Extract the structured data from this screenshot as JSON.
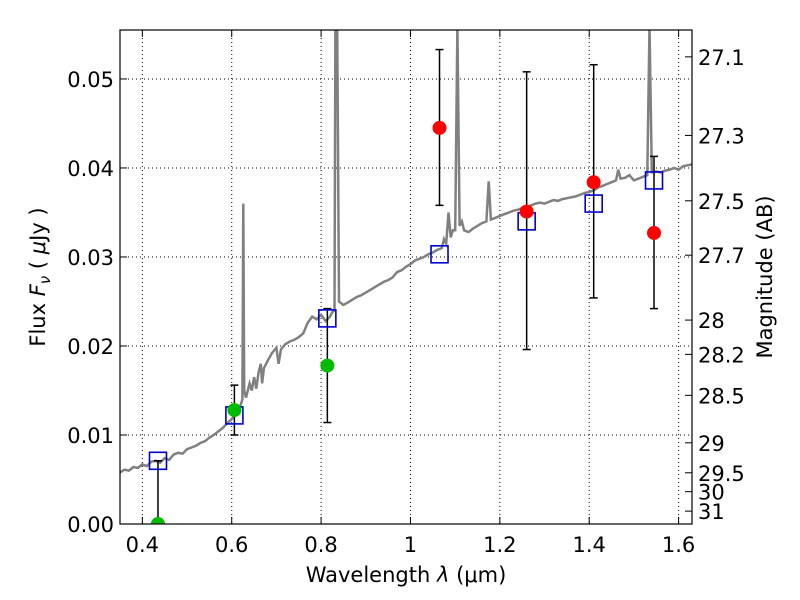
{
  "chart_data": {
    "type": "scatter",
    "title": "",
    "xlabel_main": "Wavelength",
    "xlabel_symbol": "λ",
    "xlabel_unit": "(μm)",
    "ylabel_main": "Flux",
    "ylabel_symbol": "F",
    "ylabel_subscript": "ν",
    "ylabel_unit_open": "(",
    "ylabel_unit_mu": "μ",
    "ylabel_unit_rest": "Jy",
    "ylabel_unit_close": ")",
    "y2label": "Magnitude (AB)",
    "xlim": [
      0.35,
      1.63
    ],
    "ylim": [
      0.0,
      0.0555
    ],
    "grid": true,
    "x_ticks": [
      {
        "value": 0.4,
        "label": "0.4"
      },
      {
        "value": 0.6,
        "label": "0.6"
      },
      {
        "value": 0.8,
        "label": "0.8"
      },
      {
        "value": 1.0,
        "label": "1"
      },
      {
        "value": 1.2,
        "label": "1.2"
      },
      {
        "value": 1.4,
        "label": "1.4"
      },
      {
        "value": 1.6,
        "label": "1.6"
      }
    ],
    "y_ticks": [
      {
        "value": 0.0,
        "label": "0.00"
      },
      {
        "value": 0.01,
        "label": "0.01"
      },
      {
        "value": 0.02,
        "label": "0.02"
      },
      {
        "value": 0.03,
        "label": "0.03"
      },
      {
        "value": 0.04,
        "label": "0.04"
      },
      {
        "value": 0.05,
        "label": "0.05"
      }
    ],
    "y2_ticks": [
      {
        "value": 27.1,
        "label": "27.1"
      },
      {
        "value": 27.3,
        "label": "27.3"
      },
      {
        "value": 27.5,
        "label": "27.5"
      },
      {
        "value": 27.7,
        "label": "27.7"
      },
      {
        "value": 28.0,
        "label": "28"
      },
      {
        "value": 28.2,
        "label": "28.2"
      },
      {
        "value": 28.5,
        "label": "28.5"
      },
      {
        "value": 29.0,
        "label": "29"
      },
      {
        "value": 29.5,
        "label": "29.5"
      },
      {
        "value": 30.0,
        "label": "30"
      },
      {
        "value": 31.0,
        "label": "31"
      }
    ],
    "model_spectrum": {
      "color": "#808080",
      "points": [
        [
          0.35,
          0.0058
        ],
        [
          0.36,
          0.0061
        ],
        [
          0.37,
          0.006
        ],
        [
          0.38,
          0.0064
        ],
        [
          0.39,
          0.0063
        ],
        [
          0.4,
          0.0067
        ],
        [
          0.41,
          0.0065
        ],
        [
          0.42,
          0.007
        ],
        [
          0.43,
          0.0071
        ],
        [
          0.44,
          0.0069
        ],
        [
          0.45,
          0.0074
        ],
        [
          0.46,
          0.0072
        ],
        [
          0.47,
          0.0078
        ],
        [
          0.48,
          0.008
        ],
        [
          0.49,
          0.0079
        ],
        [
          0.5,
          0.0084
        ],
        [
          0.51,
          0.0086
        ],
        [
          0.52,
          0.0088
        ],
        [
          0.53,
          0.0091
        ],
        [
          0.54,
          0.0093
        ],
        [
          0.55,
          0.0097
        ],
        [
          0.56,
          0.01
        ],
        [
          0.57,
          0.0104
        ],
        [
          0.58,
          0.0108
        ],
        [
          0.59,
          0.0113
        ],
        [
          0.6,
          0.0118
        ],
        [
          0.605,
          0.0121
        ],
        [
          0.61,
          0.0124
        ],
        [
          0.615,
          0.0128
        ],
        [
          0.62,
          0.0134
        ],
        [
          0.624,
          0.014
        ],
        [
          0.626,
          0.036
        ],
        [
          0.628,
          0.015
        ],
        [
          0.632,
          0.0142
        ],
        [
          0.636,
          0.015
        ],
        [
          0.64,
          0.0158
        ],
        [
          0.645,
          0.015
        ],
        [
          0.65,
          0.0165
        ],
        [
          0.655,
          0.0152
        ],
        [
          0.66,
          0.017
        ],
        [
          0.665,
          0.018
        ],
        [
          0.668,
          0.0158
        ],
        [
          0.672,
          0.0175
        ],
        [
          0.68,
          0.0183
        ],
        [
          0.69,
          0.0192
        ],
        [
          0.7,
          0.0198
        ],
        [
          0.705,
          0.018
        ],
        [
          0.71,
          0.0196
        ],
        [
          0.72,
          0.0202
        ],
        [
          0.73,
          0.0205
        ],
        [
          0.74,
          0.0207
        ],
        [
          0.75,
          0.021
        ],
        [
          0.76,
          0.0214
        ],
        [
          0.77,
          0.0226
        ],
        [
          0.78,
          0.0233
        ],
        [
          0.79,
          0.023
        ],
        [
          0.8,
          0.0235
        ],
        [
          0.81,
          0.0228
        ],
        [
          0.82,
          0.0233
        ],
        [
          0.825,
          0.0238
        ],
        [
          0.83,
          0.024
        ],
        [
          0.832,
          0.056
        ],
        [
          0.836,
          0.056
        ],
        [
          0.84,
          0.025
        ],
        [
          0.85,
          0.0246
        ],
        [
          0.86,
          0.0249
        ],
        [
          0.87,
          0.0252
        ],
        [
          0.88,
          0.0255
        ],
        [
          0.89,
          0.0257
        ],
        [
          0.9,
          0.026
        ],
        [
          0.91,
          0.0263
        ],
        [
          0.92,
          0.0266
        ],
        [
          0.93,
          0.0269
        ],
        [
          0.94,
          0.0272
        ],
        [
          0.95,
          0.0274
        ],
        [
          0.96,
          0.0277
        ],
        [
          0.97,
          0.0283
        ],
        [
          0.98,
          0.0285
        ],
        [
          0.99,
          0.0289
        ],
        [
          1.0,
          0.0292
        ],
        [
          1.01,
          0.0296
        ],
        [
          1.02,
          0.0298
        ],
        [
          1.03,
          0.03
        ],
        [
          1.04,
          0.0303
        ],
        [
          1.05,
          0.0305
        ],
        [
          1.06,
          0.0308
        ],
        [
          1.07,
          0.031
        ],
        [
          1.075,
          0.032
        ],
        [
          1.08,
          0.0315
        ],
        [
          1.085,
          0.035
        ],
        [
          1.09,
          0.0322
        ],
        [
          1.095,
          0.033
        ],
        [
          1.1,
          0.033
        ],
        [
          1.105,
          0.056
        ],
        [
          1.11,
          0.0335
        ],
        [
          1.115,
          0.034
        ],
        [
          1.12,
          0.033
        ],
        [
          1.13,
          0.0328
        ],
        [
          1.14,
          0.0332
        ],
        [
          1.15,
          0.0335
        ],
        [
          1.16,
          0.0338
        ],
        [
          1.17,
          0.034
        ],
        [
          1.175,
          0.0385
        ],
        [
          1.18,
          0.0342
        ],
        [
          1.19,
          0.0344
        ],
        [
          1.2,
          0.0346
        ],
        [
          1.21,
          0.0348
        ],
        [
          1.22,
          0.035
        ],
        [
          1.23,
          0.0352
        ],
        [
          1.24,
          0.0353
        ],
        [
          1.25,
          0.0355
        ],
        [
          1.26,
          0.0356
        ],
        [
          1.27,
          0.0358
        ],
        [
          1.28,
          0.036
        ],
        [
          1.29,
          0.0361
        ],
        [
          1.3,
          0.036
        ],
        [
          1.31,
          0.0362
        ],
        [
          1.32,
          0.0364
        ],
        [
          1.33,
          0.0363
        ],
        [
          1.34,
          0.0365
        ],
        [
          1.35,
          0.0366
        ],
        [
          1.36,
          0.0367
        ],
        [
          1.37,
          0.0368
        ],
        [
          1.38,
          0.037
        ],
        [
          1.39,
          0.0372
        ],
        [
          1.4,
          0.0373
        ],
        [
          1.41,
          0.0375
        ],
        [
          1.42,
          0.0378
        ],
        [
          1.43,
          0.038
        ],
        [
          1.44,
          0.0382
        ],
        [
          1.45,
          0.0384
        ],
        [
          1.46,
          0.0386
        ],
        [
          1.465,
          0.0398
        ],
        [
          1.47,
          0.0388
        ],
        [
          1.48,
          0.0389
        ],
        [
          1.49,
          0.0392
        ],
        [
          1.5,
          0.0386
        ],
        [
          1.51,
          0.0388
        ],
        [
          1.52,
          0.039
        ],
        [
          1.53,
          0.0392
        ],
        [
          1.535,
          0.056
        ],
        [
          1.54,
          0.0395
        ],
        [
          1.55,
          0.0396
        ],
        [
          1.56,
          0.0395
        ],
        [
          1.57,
          0.0397
        ],
        [
          1.58,
          0.0398
        ],
        [
          1.59,
          0.04
        ],
        [
          1.6,
          0.0398
        ],
        [
          1.61,
          0.0402
        ],
        [
          1.62,
          0.0403
        ],
        [
          1.63,
          0.0404
        ]
      ]
    },
    "model_bands": {
      "color": "#0000cc",
      "points": [
        [
          0.435,
          0.0071
        ],
        [
          0.606,
          0.0122
        ],
        [
          0.814,
          0.0231
        ],
        [
          1.065,
          0.0303
        ],
        [
          1.26,
          0.034
        ],
        [
          1.41,
          0.036
        ],
        [
          1.545,
          0.0386
        ]
      ]
    },
    "detections": {
      "color": "#ff0000",
      "points": [
        {
          "x": 1.065,
          "y": 0.0445,
          "ylo": 0.0358,
          "yhi": 0.0533
        },
        {
          "x": 1.26,
          "y": 0.0351,
          "ylo": 0.0196,
          "yhi": 0.0508
        },
        {
          "x": 1.41,
          "y": 0.0384,
          "ylo": 0.0254,
          "yhi": 0.0516
        },
        {
          "x": 1.545,
          "y": 0.0327,
          "ylo": 0.0242,
          "yhi": 0.0413
        }
      ]
    },
    "optical": {
      "color": "#00bb00",
      "points": [
        {
          "x": 0.435,
          "y": 0.0,
          "ylo": 0.0,
          "yhi": 0.0071
        },
        {
          "x": 0.606,
          "y": 0.0128,
          "ylo": 0.01,
          "yhi": 0.0156
        },
        {
          "x": 0.814,
          "y": 0.0178,
          "ylo": 0.0114,
          "yhi": 0.0242
        }
      ]
    }
  }
}
